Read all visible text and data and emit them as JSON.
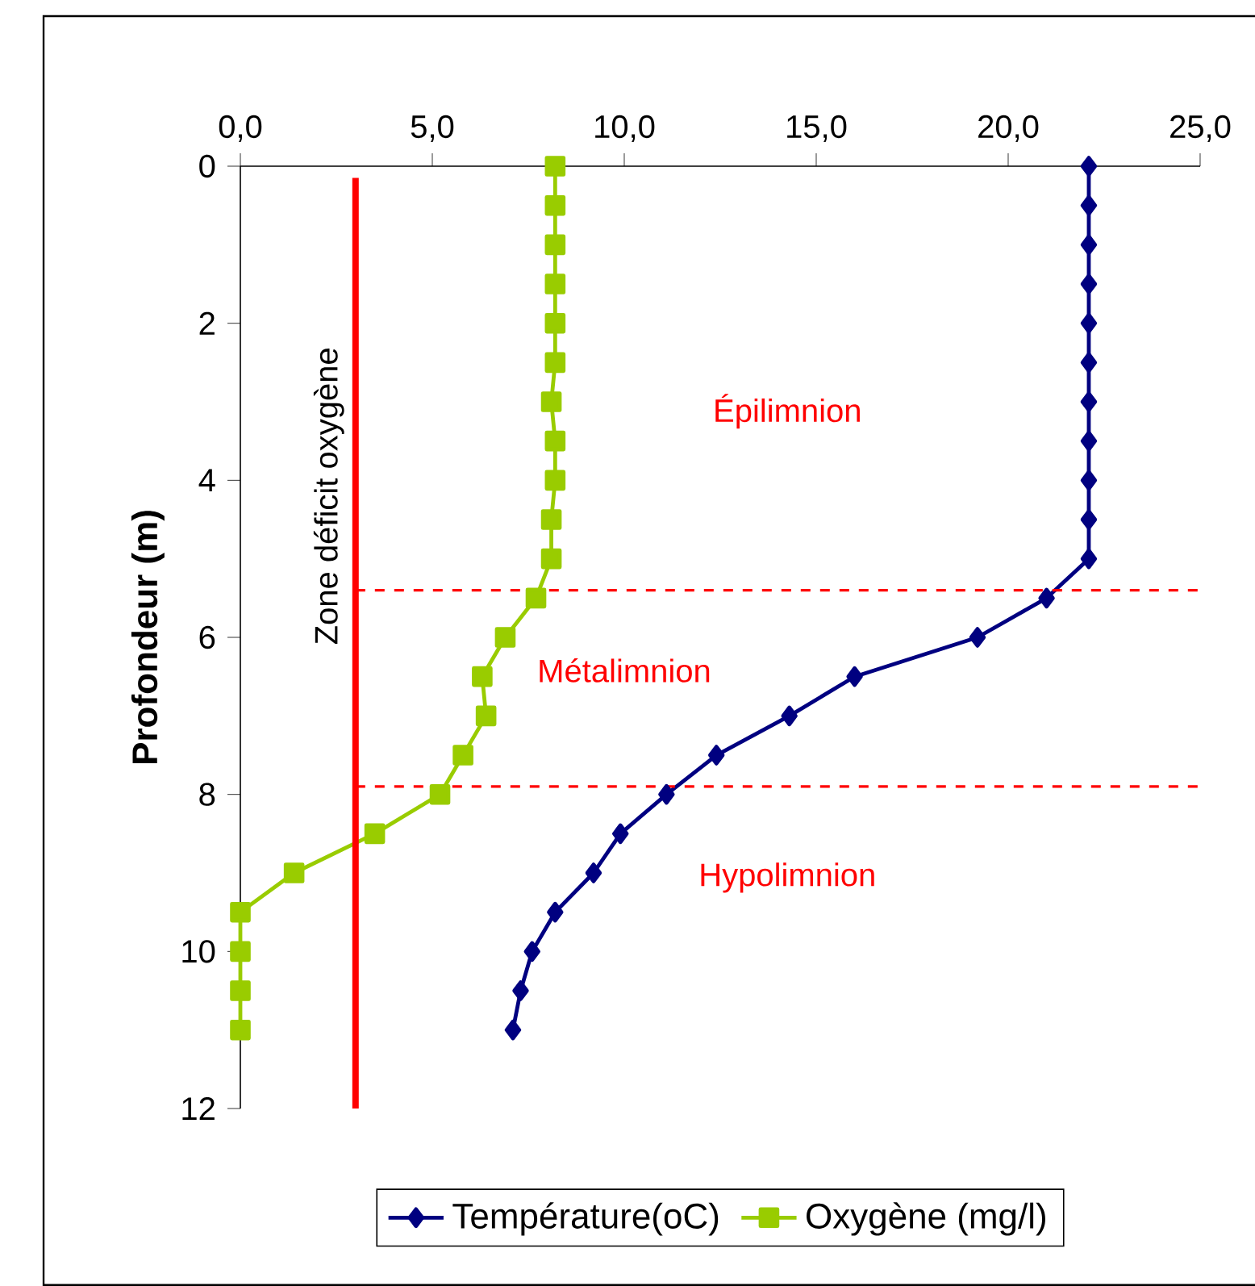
{
  "chart_data": {
    "type": "line",
    "ylabel": "Profondeur (m)",
    "xlim": [
      0,
      25
    ],
    "xticks": [
      {
        "value": 0,
        "label": "0,0"
      },
      {
        "value": 5,
        "label": "5,0"
      },
      {
        "value": 10,
        "label": "10,0"
      },
      {
        "value": 15,
        "label": "15,0"
      },
      {
        "value": 20,
        "label": "20,0"
      },
      {
        "value": 25,
        "label": "25,0"
      }
    ],
    "ylim": [
      12,
      0
    ],
    "yticks": [
      0,
      2,
      4,
      6,
      8,
      10,
      12
    ],
    "series": [
      {
        "name": "Température(oC)",
        "color": "#000080",
        "marker": "diamond",
        "x": [
          22.1,
          22.1,
          22.1,
          22.1,
          22.1,
          22.1,
          22.1,
          22.1,
          22.1,
          22.1,
          22.1,
          21.0,
          19.2,
          16.0,
          14.3,
          12.4,
          11.1,
          9.9,
          9.2,
          8.2,
          7.6,
          7.3,
          7.1
        ],
        "values": [
          0,
          0.5,
          1,
          1.5,
          2,
          2.5,
          3,
          3.5,
          4,
          4.5,
          5,
          5.5,
          6,
          6.5,
          7,
          7.5,
          8,
          8.5,
          9,
          9.5,
          10,
          10.5,
          11
        ]
      },
      {
        "name": "Oxygène (mg/l)",
        "color": "#99cc00",
        "marker": "square",
        "x": [
          8.2,
          8.2,
          8.2,
          8.2,
          8.2,
          8.2,
          8.1,
          8.2,
          8.2,
          8.1,
          8.1,
          7.7,
          6.9,
          6.3,
          6.4,
          5.8,
          5.2,
          3.5,
          1.4,
          0,
          0,
          0,
          0
        ],
        "values": [
          0,
          0.5,
          1,
          1.5,
          2,
          2.5,
          3,
          3.5,
          4,
          4.5,
          5,
          5.5,
          6,
          6.5,
          7,
          7.5,
          8,
          8.5,
          9,
          9.5,
          10,
          10.5,
          11
        ]
      }
    ],
    "ref_lines": [
      {
        "axis": "x",
        "value": 3,
        "label": "Zone déficit oxygène",
        "color": "#ff0000",
        "line_style": "solid"
      },
      {
        "axis": "y",
        "value": 5.4,
        "color": "#ff0000",
        "line_style": "dashed"
      },
      {
        "axis": "y",
        "value": 7.9,
        "color": "#ff0000",
        "line_style": "dashed"
      }
    ],
    "annotations": [
      "Épilimnion",
      "Métalimnion",
      "Hypolimnion"
    ],
    "legend": "bottom",
    "grid": false
  }
}
